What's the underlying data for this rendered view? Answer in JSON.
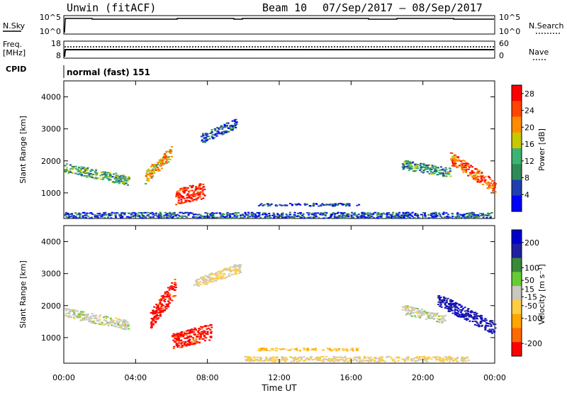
{
  "header": {
    "station": "Unwin (fitACF)",
    "beam": "Beam 10",
    "date_range": "07/Sep/2017 – 08/Sep/2017"
  },
  "top_panel": {
    "left_label": "N.Sky",
    "left_ticks": [
      "10^5",
      "10^0"
    ],
    "right_ticks": [
      "10^5",
      "10^0"
    ],
    "right_label": "N.Search"
  },
  "freq_panel": {
    "left_label_line1": "Freq.",
    "left_label_line2": "[MHz]",
    "left_ticks": [
      "18",
      "8"
    ],
    "right_ticks": [
      "60",
      "0"
    ],
    "right_label": "Nave"
  },
  "cpid_panel": {
    "label": "CPID",
    "text": "normal (fast) 151"
  },
  "colors": {
    "power_scale": [
      "#0000ff",
      "#1f3fb0",
      "#2e8b57",
      "#3cb371",
      "#c8c800",
      "#ff8c00",
      "#ff4500",
      "#ff0000"
    ],
    "velocity_scale": [
      "#0000cd",
      "#2020a0",
      "#3a8a3a",
      "#66cc33",
      "#c8c8c0",
      "#ffcc44",
      "#ffa500",
      "#ff6a00",
      "#ff0000"
    ]
  },
  "chart_data": [
    {
      "type": "heatmap",
      "title": "Power",
      "xlabel": "Time UT",
      "ylabel": "Slant Range [km]",
      "x_ticks": [
        "00:00",
        "04:00",
        "08:00",
        "12:00",
        "16:00",
        "20:00",
        "00:00"
      ],
      "y_ticks": [
        1000,
        2000,
        3000,
        4000
      ],
      "ylim": [
        200,
        4500
      ],
      "xlim_hours": [
        0,
        24
      ],
      "colorbar": {
        "label": "Power [dB]",
        "ticks": [
          4,
          8,
          12,
          16,
          20,
          24,
          28
        ],
        "range": [
          0,
          30
        ]
      },
      "regions": [
        {
          "t": [
            0.0,
            3.6
          ],
          "r0": 1800,
          "r1": 1400,
          "w": 300,
          "v": 12
        },
        {
          "t": [
            4.5,
            6.0
          ],
          "r0": 1500,
          "r1": 2300,
          "w": 400,
          "v": 20
        },
        {
          "t": [
            6.2,
            7.8
          ],
          "r0": 900,
          "r1": 1100,
          "w": 500,
          "v": 27
        },
        {
          "t": [
            7.6,
            9.6
          ],
          "r0": 2700,
          "r1": 3200,
          "w": 300,
          "v": 6
        },
        {
          "t": [
            10.8,
            16.4
          ],
          "r0": 650,
          "r1": 650,
          "w": 80,
          "v": 5
        },
        {
          "t": [
            0.0,
            23.8
          ],
          "r0": 320,
          "r1": 320,
          "w": 180,
          "v": 6
        },
        {
          "t": [
            18.8,
            21.5
          ],
          "r0": 1900,
          "r1": 1650,
          "w": 300,
          "v": 10
        },
        {
          "t": [
            21.5,
            24.0
          ],
          "r0": 2100,
          "r1": 1200,
          "w": 400,
          "v": 24
        }
      ]
    },
    {
      "type": "heatmap",
      "title": "Velocity",
      "xlabel": "Time UT",
      "ylabel": "Slant Range [km]",
      "x_ticks": [
        "00:00",
        "04:00",
        "08:00",
        "12:00",
        "16:00",
        "20:00",
        "00:00"
      ],
      "y_ticks": [
        1000,
        2000,
        3000,
        4000
      ],
      "ylim": [
        200,
        4500
      ],
      "xlim_hours": [
        0,
        24
      ],
      "colorbar": {
        "label": "Velocity [m s⁻¹]",
        "ticks": [
          200,
          100,
          50,
          15,
          -15,
          -50,
          -100,
          -200
        ],
        "range": [
          -250,
          250
        ]
      },
      "regions": [
        {
          "t": [
            0.0,
            3.6
          ],
          "r0": 1800,
          "r1": 1400,
          "w": 300,
          "v": 0
        },
        {
          "t": [
            4.8,
            6.2
          ],
          "r0": 1600,
          "r1": 2600,
          "w": 600,
          "v": -220
        },
        {
          "t": [
            6.0,
            8.2
          ],
          "r0": 900,
          "r1": 1200,
          "w": 500,
          "v": -220
        },
        {
          "t": [
            7.2,
            9.8
          ],
          "r0": 2700,
          "r1": 3200,
          "w": 300,
          "v": -30
        },
        {
          "t": [
            10.8,
            16.4
          ],
          "r0": 650,
          "r1": 650,
          "w": 80,
          "v": -70
        },
        {
          "t": [
            10.0,
            22.5
          ],
          "r0": 350,
          "r1": 350,
          "w": 160,
          "v": -40
        },
        {
          "t": [
            18.8,
            21.2
          ],
          "r0": 1900,
          "r1": 1600,
          "w": 300,
          "v": 0
        },
        {
          "t": [
            20.8,
            24.0
          ],
          "r0": 2200,
          "r1": 1300,
          "w": 400,
          "v": 180
        }
      ]
    }
  ]
}
